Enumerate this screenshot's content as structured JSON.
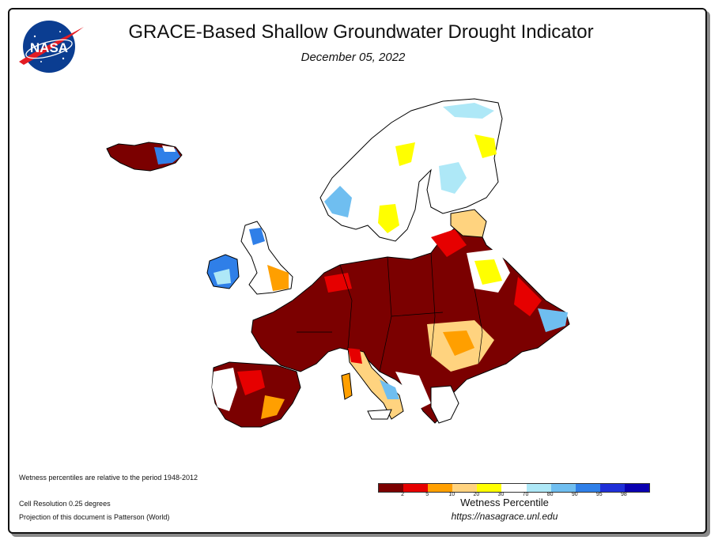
{
  "header": {
    "title": "GRACE-Based Shallow Groundwater Drought Indicator",
    "date": "December 05, 2022",
    "logo_text": "NASA"
  },
  "notes": {
    "period": "Wetness percentiles are relative to the period 1948-2012",
    "resolution": "Cell Resolution 0.25 degrees",
    "projection": "Projection of this document is Patterson (World)"
  },
  "legend": {
    "title": "Wetness Percentile",
    "ticks": [
      "2",
      "5",
      "10",
      "20",
      "30",
      "70",
      "80",
      "90",
      "95",
      "98"
    ],
    "colors": [
      "#7b0000",
      "#e60000",
      "#ff9f00",
      "#ffd37f",
      "#ffff00",
      "#ffffff",
      "#aee8f7",
      "#6fbef0",
      "#2f7fe8",
      "#1f2fd8",
      "#0a00b0"
    ]
  },
  "url": "https://nasagrace.unl.edu",
  "map": {
    "region": "Europe",
    "colors": {
      "dry_extreme": "#7b0000",
      "dry_severe": "#e60000",
      "dry_moderate": "#ff9f00",
      "abnormal": "#ffd37f",
      "near_normal_dry": "#ffff00",
      "normal": "#ffffff",
      "wet_light": "#aee8f7",
      "wet": "#6fbef0",
      "wet_very": "#2f7fe8",
      "ocean": "#ffffff",
      "border": "#000000"
    }
  }
}
